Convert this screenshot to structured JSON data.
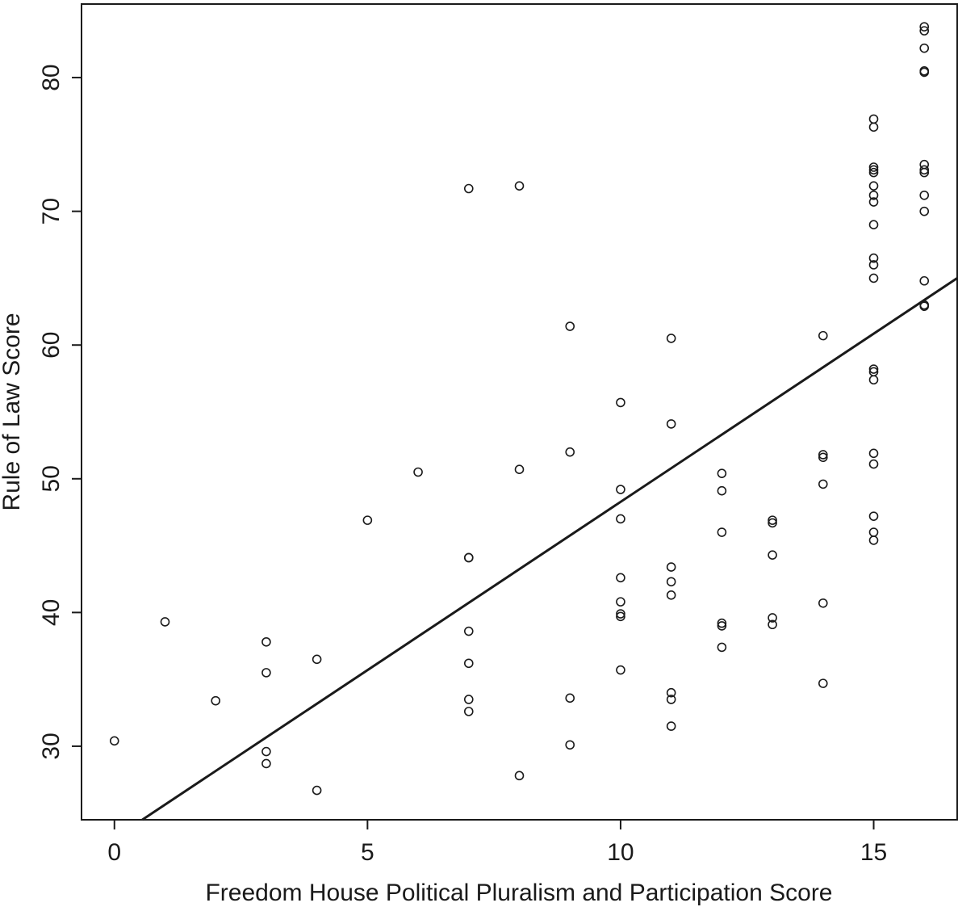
{
  "chart_data": {
    "type": "scatter",
    "title": "",
    "xlabel": "Freedom House Political Pluralism and Participation Score",
    "ylabel": "Rule of Law Score",
    "xlim": [
      -0.65,
      16.65
    ],
    "ylim": [
      24.5,
      85.5
    ],
    "xticks": [
      0,
      5,
      10,
      15
    ],
    "yticks": [
      30,
      40,
      50,
      60,
      70,
      80
    ],
    "grid": false,
    "legend": "none",
    "colors": {
      "axis": "#1a1a1a",
      "marker": "#1a1a1a",
      "line": "#1a1a1a"
    },
    "trend_line": {
      "x1": 0.55,
      "y1": 24.5,
      "x2": 16.65,
      "y2": 65.0
    },
    "points": [
      {
        "x": 0,
        "y": 30.4
      },
      {
        "x": 1,
        "y": 39.3
      },
      {
        "x": 2,
        "y": 33.4
      },
      {
        "x": 3,
        "y": 37.8
      },
      {
        "x": 3,
        "y": 35.5
      },
      {
        "x": 3,
        "y": 29.6
      },
      {
        "x": 3,
        "y": 28.7
      },
      {
        "x": 4,
        "y": 36.5
      },
      {
        "x": 4,
        "y": 26.7
      },
      {
        "x": 5,
        "y": 46.9
      },
      {
        "x": 6,
        "y": 50.5
      },
      {
        "x": 7,
        "y": 71.7
      },
      {
        "x": 7,
        "y": 44.1
      },
      {
        "x": 7,
        "y": 44.1
      },
      {
        "x": 7,
        "y": 38.6
      },
      {
        "x": 7,
        "y": 36.2
      },
      {
        "x": 7,
        "y": 33.5
      },
      {
        "x": 7,
        "y": 32.6
      },
      {
        "x": 8,
        "y": 71.9
      },
      {
        "x": 8,
        "y": 50.7
      },
      {
        "x": 8,
        "y": 27.8
      },
      {
        "x": 9,
        "y": 61.4
      },
      {
        "x": 9,
        "y": 52.0
      },
      {
        "x": 9,
        "y": 33.6
      },
      {
        "x": 9,
        "y": 30.1
      },
      {
        "x": 10,
        "y": 55.7
      },
      {
        "x": 10,
        "y": 49.2
      },
      {
        "x": 10,
        "y": 47.0
      },
      {
        "x": 10,
        "y": 42.6
      },
      {
        "x": 10,
        "y": 40.8
      },
      {
        "x": 10,
        "y": 39.9
      },
      {
        "x": 10,
        "y": 39.7
      },
      {
        "x": 10,
        "y": 35.7
      },
      {
        "x": 11,
        "y": 60.5
      },
      {
        "x": 11,
        "y": 54.1
      },
      {
        "x": 11,
        "y": 43.4
      },
      {
        "x": 11,
        "y": 42.3
      },
      {
        "x": 11,
        "y": 41.3
      },
      {
        "x": 11,
        "y": 34.0
      },
      {
        "x": 11,
        "y": 33.5
      },
      {
        "x": 11,
        "y": 31.5
      },
      {
        "x": 12,
        "y": 50.4
      },
      {
        "x": 12,
        "y": 49.1
      },
      {
        "x": 12,
        "y": 46.0
      },
      {
        "x": 12,
        "y": 39.2
      },
      {
        "x": 12,
        "y": 39.0
      },
      {
        "x": 12,
        "y": 37.4
      },
      {
        "x": 13,
        "y": 46.9
      },
      {
        "x": 13,
        "y": 46.7
      },
      {
        "x": 13,
        "y": 44.3
      },
      {
        "x": 13,
        "y": 39.6
      },
      {
        "x": 13,
        "y": 39.1
      },
      {
        "x": 14,
        "y": 60.7
      },
      {
        "x": 14,
        "y": 51.8
      },
      {
        "x": 14,
        "y": 51.6
      },
      {
        "x": 14,
        "y": 49.6
      },
      {
        "x": 14,
        "y": 40.7
      },
      {
        "x": 14,
        "y": 34.7
      },
      {
        "x": 15,
        "y": 76.9
      },
      {
        "x": 15,
        "y": 76.3
      },
      {
        "x": 15,
        "y": 73.3
      },
      {
        "x": 15,
        "y": 73.1
      },
      {
        "x": 15,
        "y": 72.9
      },
      {
        "x": 15,
        "y": 71.9
      },
      {
        "x": 15,
        "y": 71.2
      },
      {
        "x": 15,
        "y": 70.7
      },
      {
        "x": 15,
        "y": 69.0
      },
      {
        "x": 15,
        "y": 66.5
      },
      {
        "x": 15,
        "y": 66.0
      },
      {
        "x": 15,
        "y": 65.0
      },
      {
        "x": 15,
        "y": 58.2
      },
      {
        "x": 15,
        "y": 58.0
      },
      {
        "x": 15,
        "y": 57.4
      },
      {
        "x": 15,
        "y": 51.9
      },
      {
        "x": 15,
        "y": 51.1
      },
      {
        "x": 15,
        "y": 47.2
      },
      {
        "x": 15,
        "y": 46.0
      },
      {
        "x": 15,
        "y": 45.4
      },
      {
        "x": 16,
        "y": 83.8
      },
      {
        "x": 16,
        "y": 83.5
      },
      {
        "x": 16,
        "y": 82.2
      },
      {
        "x": 16,
        "y": 80.5
      },
      {
        "x": 16,
        "y": 80.4
      },
      {
        "x": 16,
        "y": 73.5
      },
      {
        "x": 16,
        "y": 73.1
      },
      {
        "x": 16,
        "y": 72.9
      },
      {
        "x": 16,
        "y": 71.2
      },
      {
        "x": 16,
        "y": 70.0
      },
      {
        "x": 16,
        "y": 64.8
      },
      {
        "x": 16,
        "y": 63.0
      },
      {
        "x": 16,
        "y": 62.9
      }
    ]
  }
}
